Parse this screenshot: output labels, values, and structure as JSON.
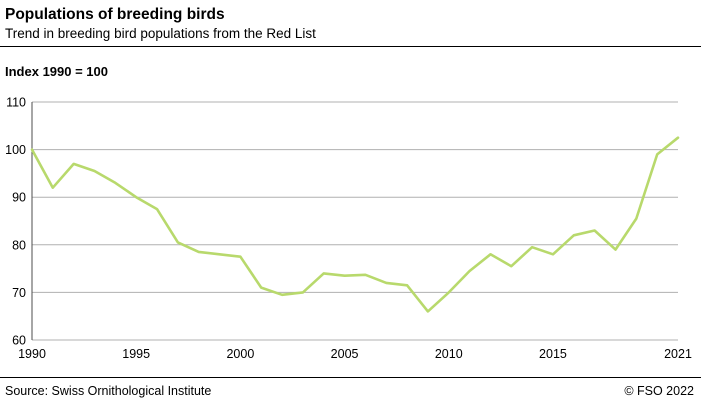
{
  "header": {
    "title": "Populations of breeding birds",
    "subtitle": "Trend in breeding bird populations from the Red List"
  },
  "chart_data": {
    "type": "line",
    "title": "Populations of breeding birds",
    "subtitle": "Trend in breeding bird populations from the Red List",
    "index_label": "Index 1990 = 100",
    "x": [
      1990,
      1991,
      1992,
      1993,
      1994,
      1995,
      1996,
      1997,
      1998,
      1999,
      2000,
      2001,
      2002,
      2003,
      2004,
      2005,
      2006,
      2007,
      2008,
      2009,
      2010,
      2011,
      2012,
      2013,
      2014,
      2015,
      2016,
      2017,
      2018,
      2019,
      2020,
      2021
    ],
    "values": [
      100,
      92,
      97,
      95.5,
      93,
      90,
      87.5,
      80.5,
      78.5,
      78,
      77.5,
      71,
      69.5,
      70,
      74,
      73.5,
      73.7,
      72,
      71.5,
      66,
      70,
      74.5,
      78,
      75.5,
      79.5,
      78,
      82,
      83,
      79,
      85.5,
      99,
      102.5
    ],
    "ylim": [
      60,
      110
    ],
    "yticks": [
      60,
      70,
      80,
      90,
      100,
      110
    ],
    "xticks": [
      1990,
      1995,
      2000,
      2005,
      2010,
      2015,
      2021
    ],
    "grid": true,
    "legend": "none",
    "line_color": "#b8d96c",
    "grid_color": "#b0b0b0",
    "axis_color": "#4d4d4d"
  },
  "footer": {
    "source": "Source: Swiss Ornithological Institute",
    "copyright": "© FSO 2022"
  }
}
